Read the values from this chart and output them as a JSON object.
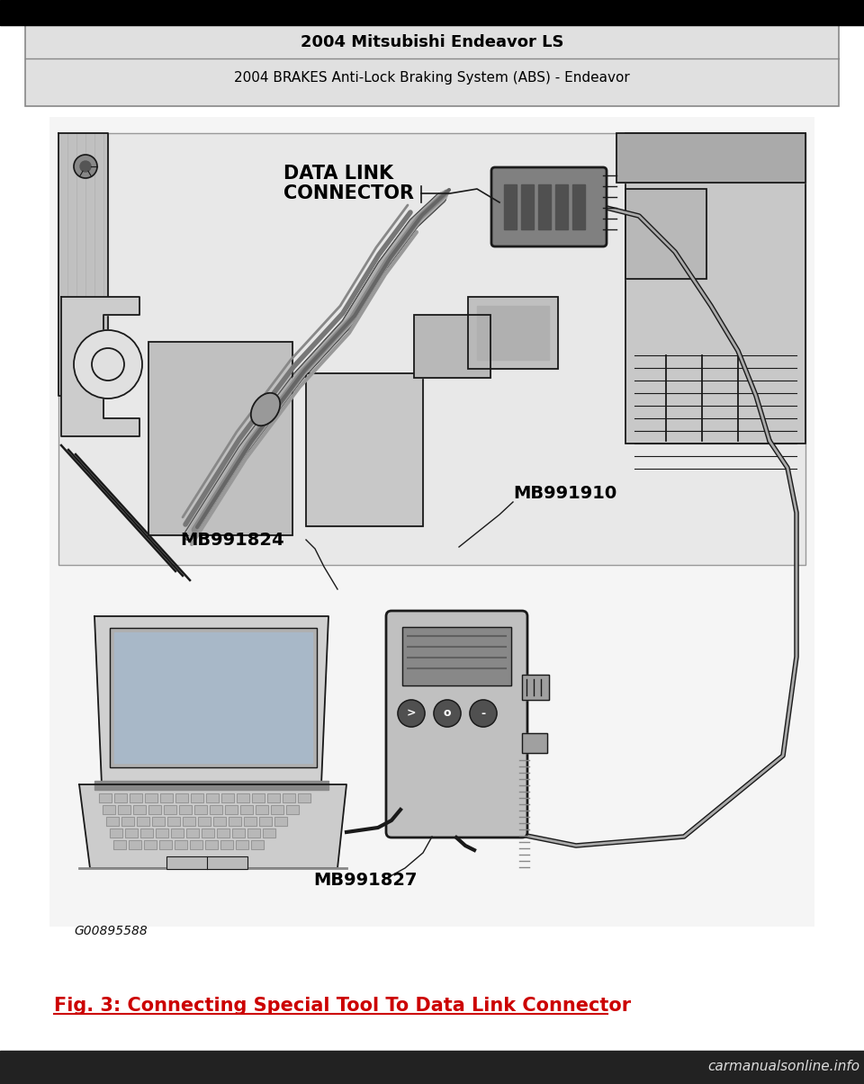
{
  "bg_color": "#ffffff",
  "header_box_outer_color": "#e0e0e0",
  "header_box_inner_color": "#f0f0f0",
  "header_box_border": "#888888",
  "header_title": "2004 Mitsubishi Endeavor LS",
  "header_subtitle": "2004 BRAKES Anti-Lock Braking System (ABS) - Endeavor",
  "caption": "Fig. 3: Connecting Special Tool To Data Link Connector",
  "caption_color": "#cc0000",
  "label_data_link_line1": "DATA LINK",
  "label_data_link_line2": "CONNECTOR",
  "label_mb991824": "MB991824",
  "label_mb991910": "MB991910",
  "label_mb991827": "MB991827",
  "label_g00895588": "G00895588",
  "watermark": "carmanualsonline.info",
  "fig_width": 9.6,
  "fig_height": 12.05,
  "draw_color": "#1a1a1a",
  "light_gray": "#d8d8d8",
  "mid_gray": "#b0b0b0",
  "dark_gray": "#707070"
}
